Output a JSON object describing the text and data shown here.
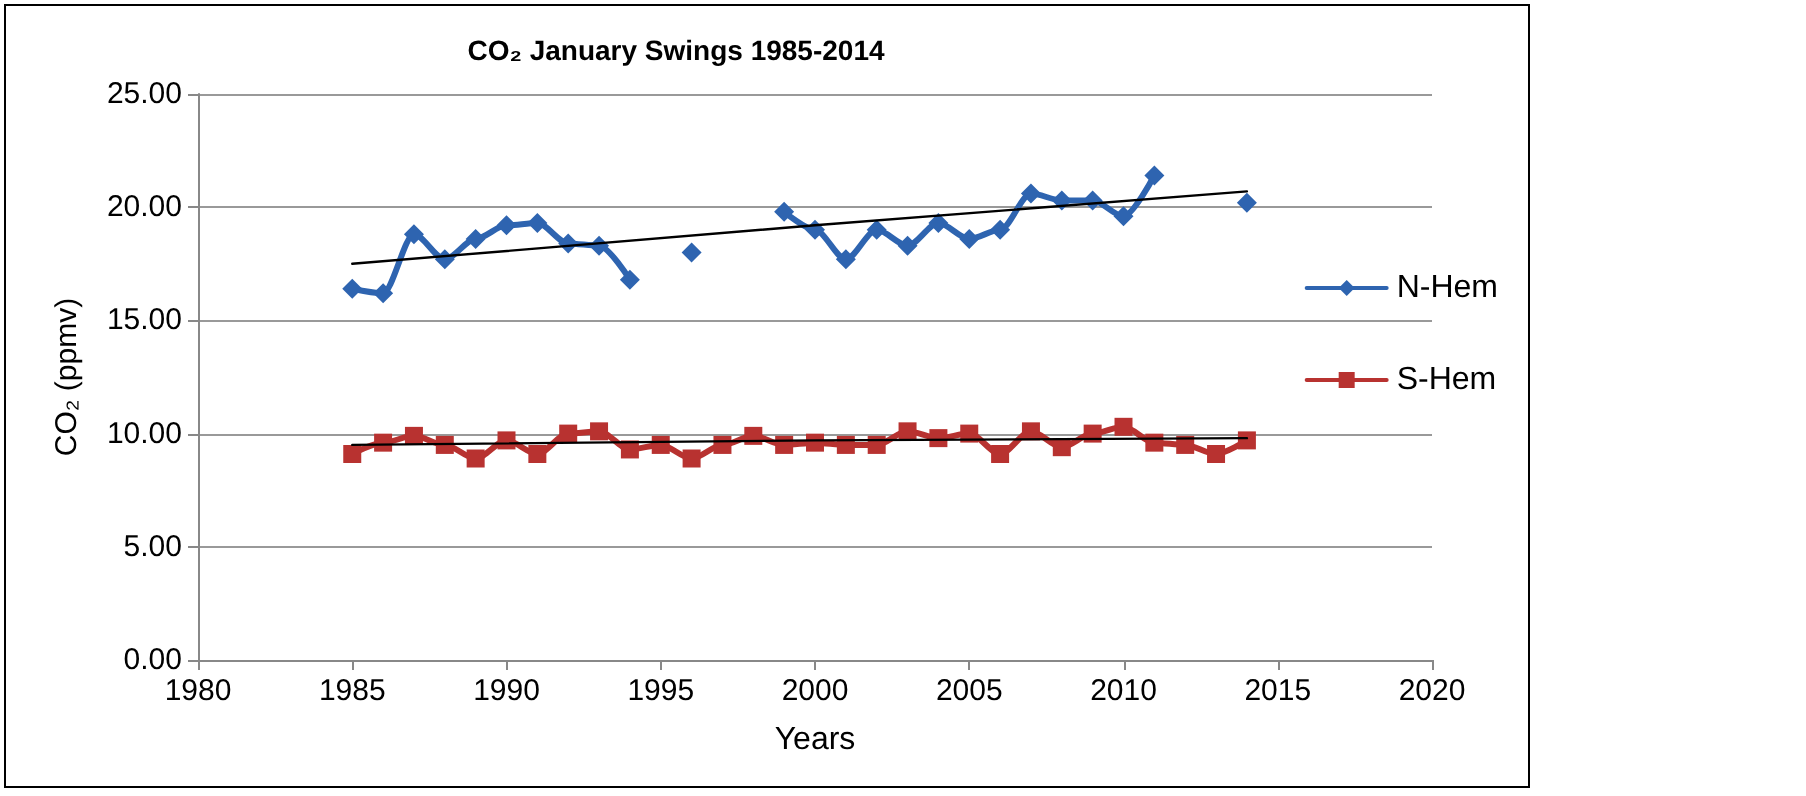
{
  "chart_data": {
    "type": "line",
    "title": "CO₂ January Swings 1985-2014",
    "xlabel": "Years",
    "ylabel": "CO₂ (ppmv)",
    "x": [
      1985,
      1986,
      1987,
      1988,
      1989,
      1990,
      1991,
      1992,
      1993,
      1994,
      1995,
      1996,
      1997,
      1998,
      1999,
      2000,
      2001,
      2002,
      2003,
      2004,
      2005,
      2006,
      2007,
      2008,
      2009,
      2010,
      2011,
      2012,
      2013,
      2014
    ],
    "series": [
      {
        "name": "N-Hem",
        "color": "#2e64b0",
        "marker": "diamond",
        "values": [
          16.4,
          16.2,
          18.8,
          17.7,
          18.6,
          19.2,
          19.3,
          18.4,
          18.3,
          16.8,
          null,
          18.0,
          null,
          null,
          19.8,
          19.0,
          17.7,
          19.0,
          18.3,
          19.3,
          18.6,
          19.0,
          20.6,
          20.3,
          20.3,
          19.6,
          21.4,
          null,
          null,
          20.2
        ]
      },
      {
        "name": "S-Hem",
        "color": "#b83230",
        "marker": "square",
        "values": [
          9.1,
          9.6,
          9.9,
          9.5,
          8.9,
          9.7,
          9.1,
          10.0,
          10.1,
          9.3,
          9.5,
          8.9,
          9.5,
          9.9,
          9.5,
          9.6,
          9.5,
          9.5,
          10.1,
          9.8,
          10.0,
          9.1,
          10.1,
          9.4,
          10.0,
          10.3,
          9.6,
          9.5,
          9.1,
          9.7
        ]
      },
      {
        "type": "line",
        "color": "#000000",
        "marker": "none",
        "x": [
          1985,
          2000,
          2014
        ],
        "values": [
          17.5,
          19.2,
          20.7
        ]
      },
      {
        "type": "line",
        "color": "#000000",
        "marker": "none",
        "x": [
          1985,
          2000,
          2014
        ],
        "values": [
          9.5,
          9.7,
          9.8
        ]
      }
    ],
    "xlim": [
      1980,
      2020
    ],
    "xticks": [
      1980,
      1985,
      1990,
      1995,
      2000,
      2005,
      2010,
      2015,
      2020
    ],
    "ylim": [
      0,
      25
    ],
    "yticks": [
      {
        "value": 0,
        "label": "0.00"
      },
      {
        "value": 5,
        "label": "5.00"
      },
      {
        "value": 10,
        "label": "10.00"
      },
      {
        "value": 15,
        "label": "15.00"
      },
      {
        "value": 20,
        "label": "20.00"
      },
      {
        "value": 25,
        "label": "25.00"
      }
    ],
    "grid": "y",
    "legend": "right"
  }
}
